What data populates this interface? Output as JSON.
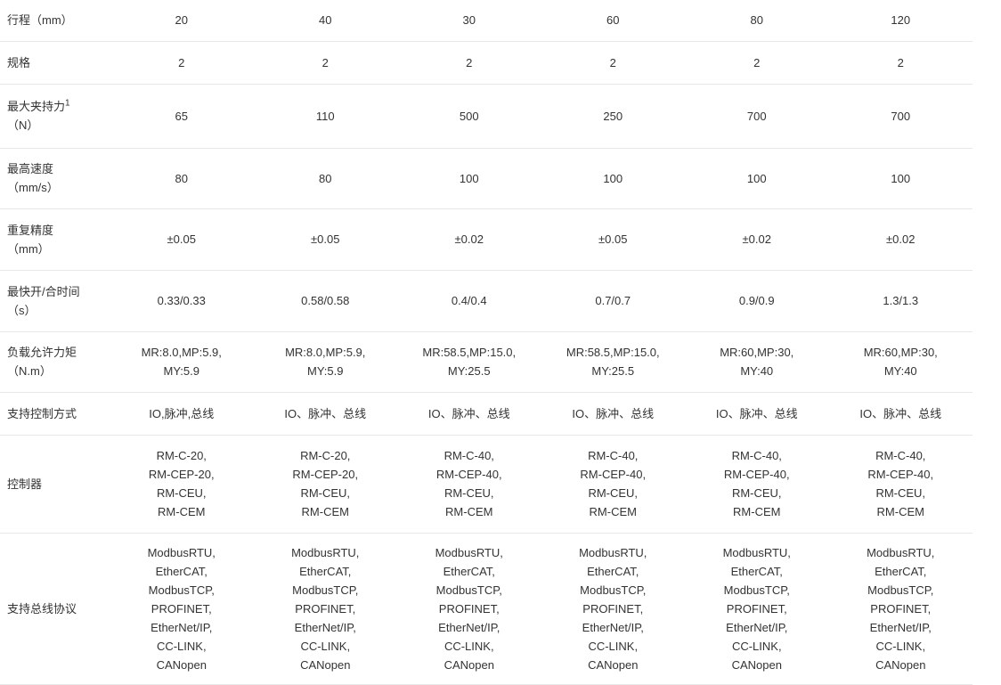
{
  "table": {
    "rows": [
      {
        "label": "行程（mm）",
        "sup": "",
        "cells": [
          "20",
          "40",
          "30",
          "60",
          "80",
          "120"
        ]
      },
      {
        "label": "规格",
        "sup": "",
        "cells": [
          "2",
          "2",
          "2",
          "2",
          "2",
          "2"
        ]
      },
      {
        "label": "最大夹持力",
        "sup": "1",
        "label2": "（N）",
        "cells": [
          "65",
          "110",
          "500",
          "250",
          "700",
          "700"
        ]
      },
      {
        "label": "最高速度",
        "sup": "",
        "label2": "（mm/s）",
        "cells": [
          "80",
          "80",
          "100",
          "100",
          "100",
          "100"
        ]
      },
      {
        "label": "重复精度",
        "sup": "",
        "label2": "（mm）",
        "cells": [
          "±0.05",
          "±0.05",
          "±0.02",
          "±0.05",
          "±0.02",
          "±0.02"
        ]
      },
      {
        "label": "最快开/合时间",
        "sup": "",
        "label2": "（s）",
        "cells": [
          "0.33/0.33",
          "0.58/0.58",
          "0.4/0.4",
          "0.7/0.7",
          "0.9/0.9",
          "1.3/1.3"
        ]
      },
      {
        "label": "负载允许力矩",
        "sup": "",
        "label2": "（N.m）",
        "cells": [
          "MR:8.0,MP:5.9,\nMY:5.9",
          "MR:8.0,MP:5.9,\nMY:5.9",
          "MR:58.5,MP:15.0,\nMY:25.5",
          "MR:58.5,MP:15.0,\nMY:25.5",
          "MR:60,MP:30,\nMY:40",
          "MR:60,MP:30,\nMY:40"
        ]
      },
      {
        "label": "支持控制方式",
        "sup": "",
        "cells": [
          "IO,脉冲,总线",
          "IO、脉冲、总线",
          "IO、脉冲、总线",
          "IO、脉冲、总线",
          "IO、脉冲、总线",
          "IO、脉冲、总线"
        ]
      },
      {
        "label": "控制器",
        "sup": "",
        "cells": [
          "RM-C-20,\nRM-CEP-20,\nRM-CEU,\nRM-CEM",
          "RM-C-20,\nRM-CEP-20,\nRM-CEU,\nRM-CEM",
          "RM-C-40,\nRM-CEP-40,\nRM-CEU,\nRM-CEM",
          "RM-C-40,\nRM-CEP-40,\nRM-CEU,\nRM-CEM",
          "RM-C-40,\nRM-CEP-40,\nRM-CEU,\nRM-CEM",
          "RM-C-40,\nRM-CEP-40,\nRM-CEU,\nRM-CEM"
        ]
      },
      {
        "label": "支持总线协议",
        "sup": "",
        "cells": [
          "ModbusRTU,\nEtherCAT,\nModbusTCP,\nPROFINET,\nEtherNet/IP,\nCC-LINK,\nCANopen",
          "ModbusRTU,\nEtherCAT,\nModbusTCP,\nPROFINET,\nEtherNet/IP,\nCC-LINK,\nCANopen",
          "ModbusRTU,\nEtherCAT,\nModbusTCP,\nPROFINET,\nEtherNet/IP,\nCC-LINK,\nCANopen",
          "ModbusRTU,\nEtherCAT,\nModbusTCP,\nPROFINET,\nEtherNet/IP,\nCC-LINK,\nCANopen",
          "ModbusRTU,\nEtherCAT,\nModbusTCP,\nPROFINET,\nEtherNet/IP,\nCC-LINK,\nCANopen",
          "ModbusRTU,\nEtherCAT,\nModbusTCP,\nPROFINET,\nEtherNet/IP,\nCC-LINK,\nCANopen"
        ]
      }
    ]
  }
}
